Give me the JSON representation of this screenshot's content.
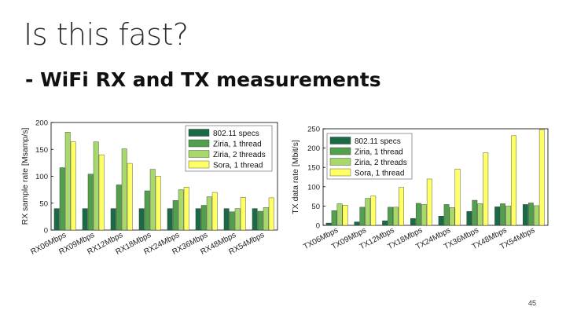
{
  "slide": {
    "title": "Is this fast?",
    "subtitle": "- WiFi RX and TX measurements",
    "page_number": "45"
  },
  "colors": {
    "series": [
      "#1a6b45",
      "#52a04e",
      "#a6d96a",
      "#ffff66"
    ]
  },
  "chart_data": [
    {
      "type": "bar",
      "title": "",
      "ylabel": "RX sample rate [Msamp/s]",
      "xlabel": "",
      "ylim": [
        0,
        200
      ],
      "yticks": [
        0,
        50,
        100,
        150,
        200
      ],
      "grid": false,
      "legend_position": "top-right",
      "categories": [
        "RX06Mbps",
        "RX09Mbps",
        "RX12Mbps",
        "RX18Mbps",
        "RX24Mbps",
        "RX36Mbps",
        "RX48Mbps",
        "RX54Mbps"
      ],
      "series": [
        {
          "name": "802.11 specs",
          "values": [
            40,
            40,
            40,
            40,
            40,
            40,
            40,
            40
          ]
        },
        {
          "name": "Ziria, 1 thread",
          "values": [
            116,
            104,
            84,
            73,
            55,
            46,
            34,
            35
          ]
        },
        {
          "name": "Ziria, 2 threads",
          "values": [
            182,
            164,
            151,
            113,
            75,
            62,
            40,
            42
          ]
        },
        {
          "name": "Sora, 1 thread",
          "values": [
            164,
            140,
            124,
            100,
            80,
            70,
            61,
            60
          ]
        }
      ]
    },
    {
      "type": "bar",
      "title": "",
      "ylabel": "TX data rate [Mbit/s]",
      "xlabel": "",
      "ylim": [
        0,
        250
      ],
      "yticks": [
        0,
        50,
        100,
        150,
        200,
        250
      ],
      "grid": false,
      "legend_position": "top-left",
      "categories": [
        "TX06Mbps",
        "TX09Mbps",
        "TX12Mbps",
        "TX18Mbps",
        "TX24Mbps",
        "TX36Mbps",
        "TX48Mbps",
        "TX54Mbps"
      ],
      "series": [
        {
          "name": "802.11 specs",
          "values": [
            6,
            9,
            12,
            18,
            24,
            36,
            48,
            54
          ]
        },
        {
          "name": "Ziria, 1 thread",
          "values": [
            38,
            47,
            47,
            57,
            54,
            65,
            56,
            58
          ]
        },
        {
          "name": "Ziria, 2 threads",
          "values": [
            56,
            70,
            47,
            54,
            46,
            56,
            50,
            51
          ]
        },
        {
          "name": "Sora, 1 thread",
          "values": [
            52,
            76,
            98,
            120,
            146,
            188,
            232,
            248
          ]
        }
      ]
    }
  ]
}
